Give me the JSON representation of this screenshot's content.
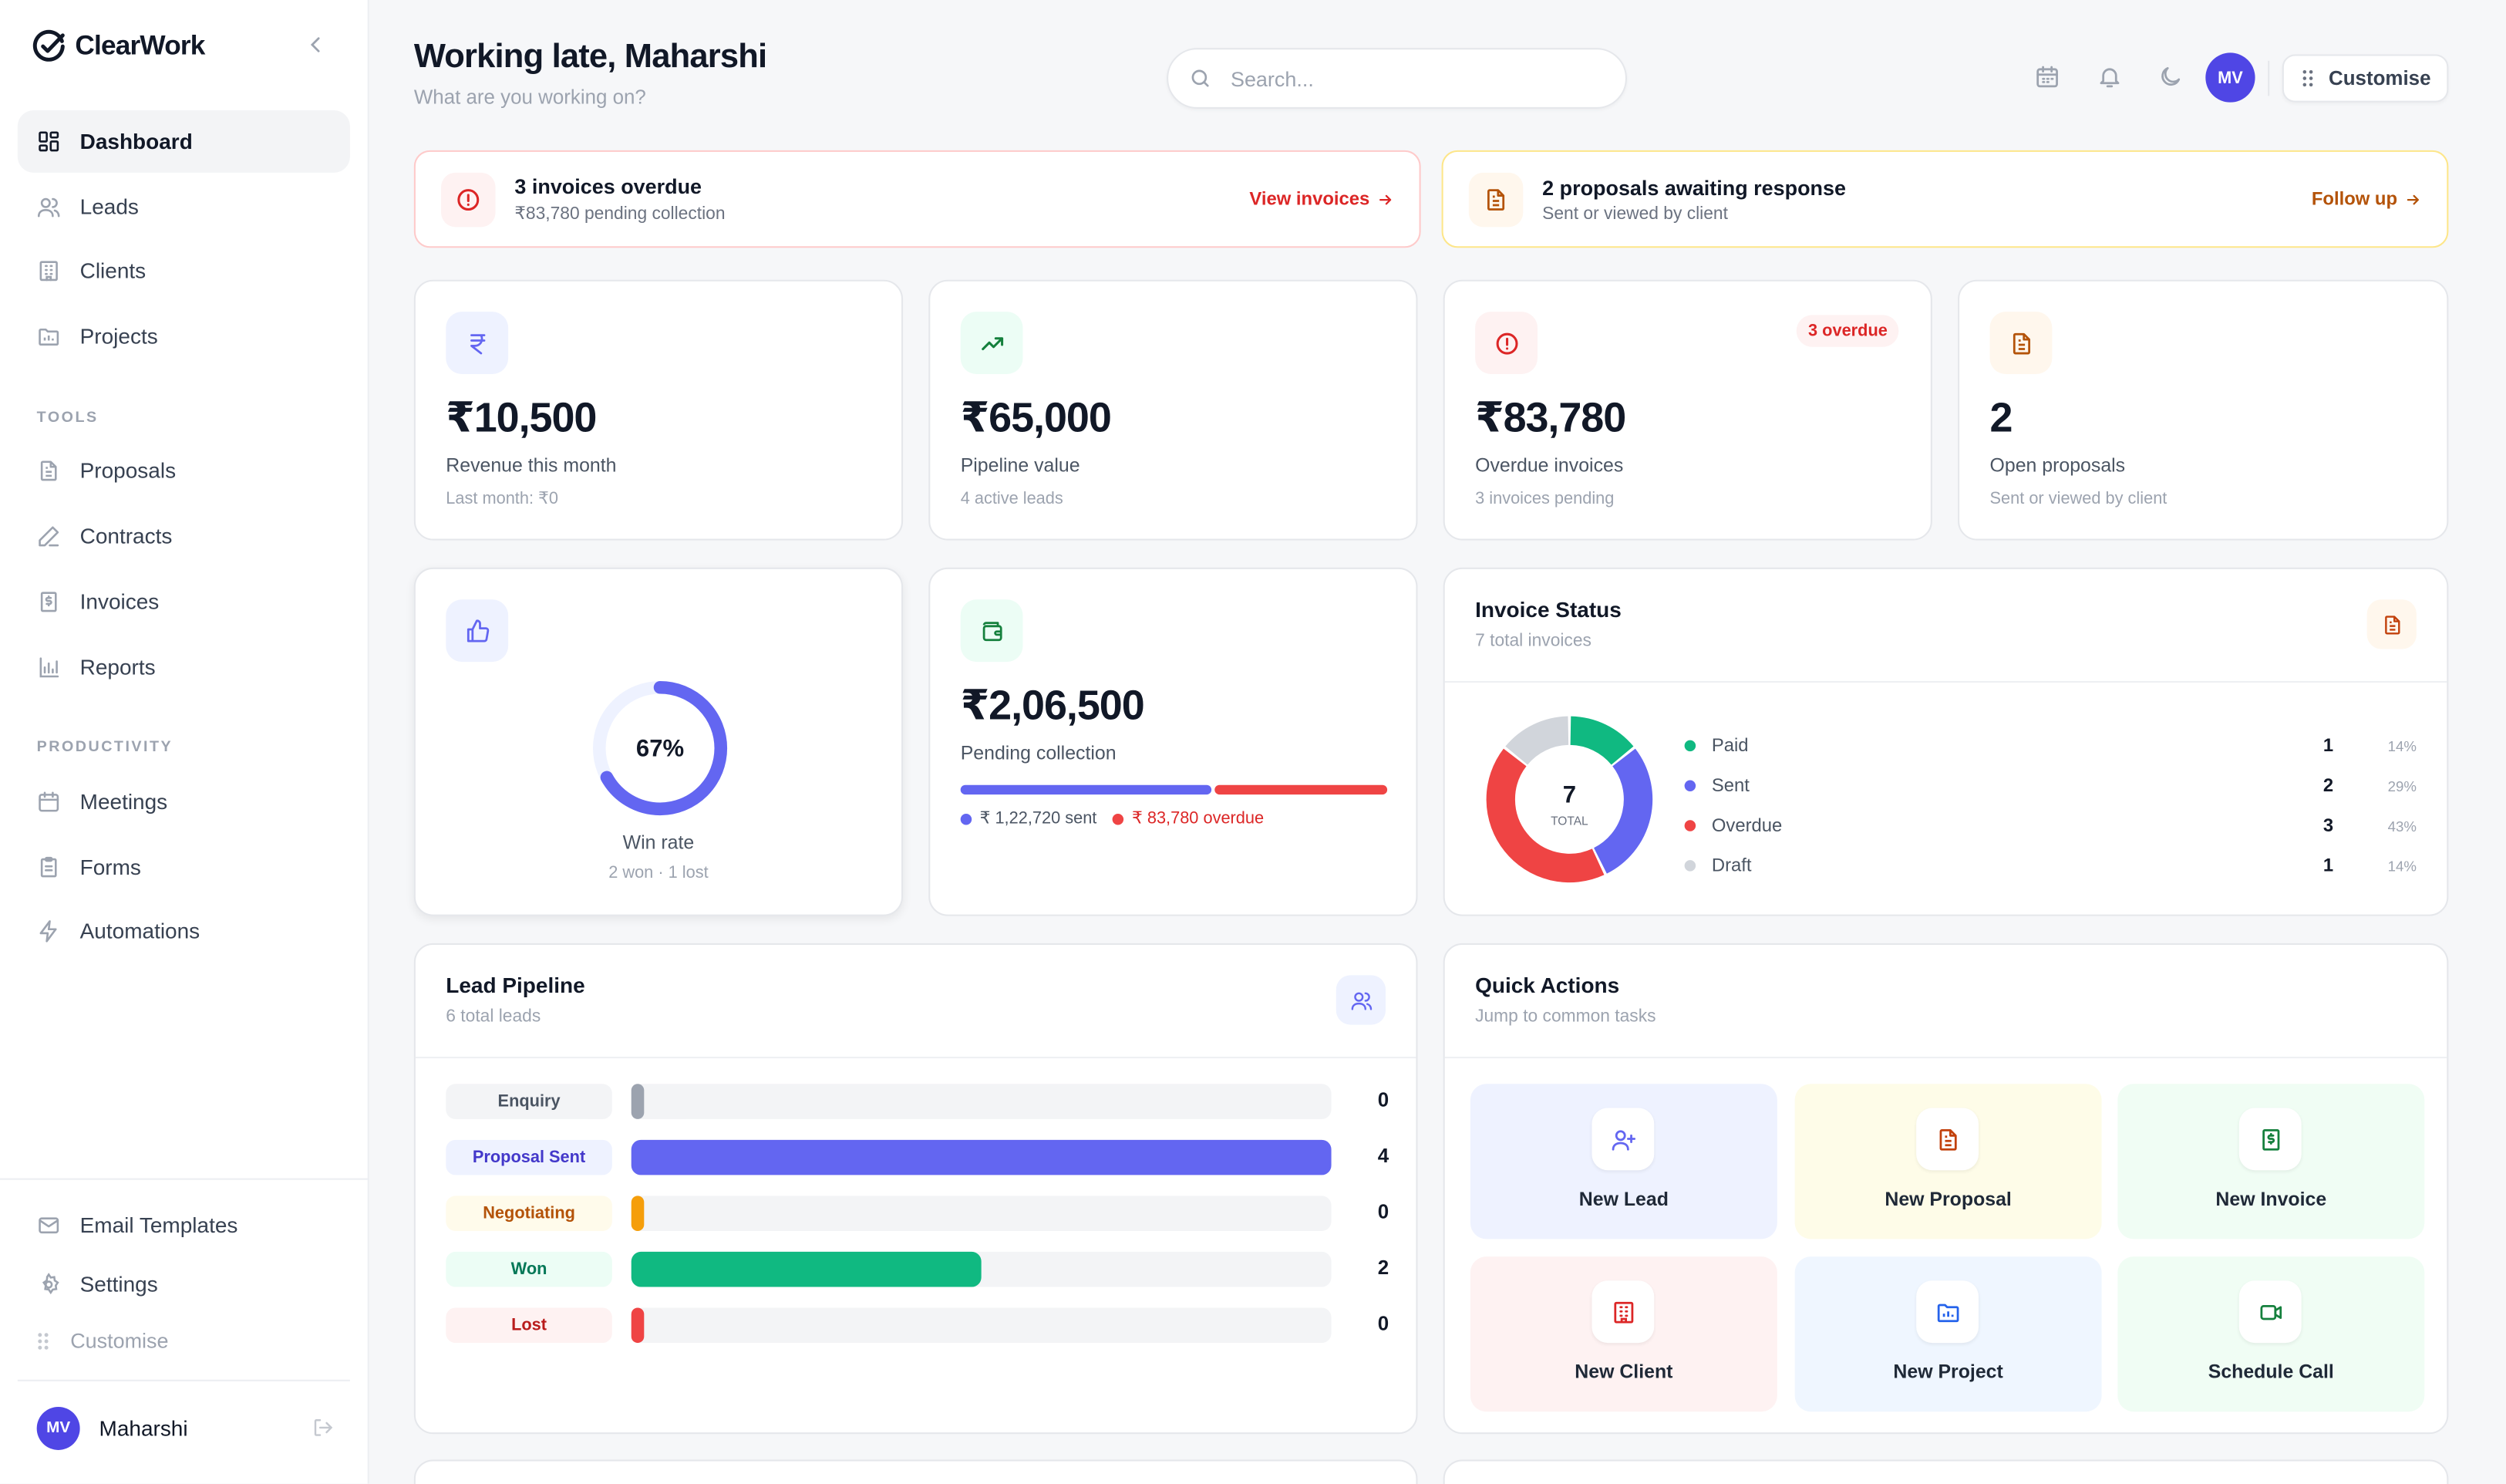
{
  "brand": {
    "name": "ClearWork"
  },
  "sidebar": {
    "main": [
      {
        "label": "Dashboard",
        "icon": "grid-icon"
      },
      {
        "label": "Leads",
        "icon": "users-icon"
      },
      {
        "label": "Clients",
        "icon": "building-icon"
      },
      {
        "label": "Projects",
        "icon": "folder-icon"
      }
    ],
    "tools_heading": "TOOLS",
    "tools": [
      {
        "label": "Proposals",
        "icon": "document-icon"
      },
      {
        "label": "Contracts",
        "icon": "pen-icon"
      },
      {
        "label": "Invoices",
        "icon": "invoice-icon"
      },
      {
        "label": "Reports",
        "icon": "bar-chart-icon"
      }
    ],
    "productivity_heading": "PRODUCTIVITY",
    "productivity": [
      {
        "label": "Meetings",
        "icon": "calendar-icon"
      },
      {
        "label": "Forms",
        "icon": "clipboard-icon"
      },
      {
        "label": "Automations",
        "icon": "bolt-icon"
      }
    ],
    "bottom": [
      {
        "label": "Email Templates",
        "icon": "mail-icon"
      },
      {
        "label": "Settings",
        "icon": "gear-icon"
      }
    ],
    "customise": "Customise",
    "user": {
      "initials": "MV",
      "name": "Maharshi"
    }
  },
  "header": {
    "greeting": "Working late, Maharshi",
    "subtitle": "What are you working on?",
    "search_placeholder": "Search...",
    "avatar_initials": "MV",
    "customise_label": "Customise"
  },
  "alerts": [
    {
      "title": "3 invoices overdue",
      "sub": "₹83,780 pending collection",
      "link": "View invoices"
    },
    {
      "title": "2 proposals awaiting response",
      "sub": "Sent or viewed by client",
      "link": "Follow up"
    }
  ],
  "stats": [
    {
      "value": "₹10,500",
      "label": "Revenue this month",
      "sub": "Last month: ₹0"
    },
    {
      "value": "₹65,000",
      "label": "Pipeline value",
      "sub": "4 active leads"
    },
    {
      "value": "₹83,780",
      "label": "Overdue invoices",
      "sub": "3 invoices pending",
      "badge": "3 overdue"
    },
    {
      "value": "2",
      "label": "Open proposals",
      "sub": "Sent or viewed by client"
    }
  ],
  "win_rate": {
    "percent_label": "67%",
    "percent": 67,
    "label": "Win rate",
    "sub": "2 won · 1 lost"
  },
  "pending": {
    "value": "₹2,06,500",
    "label": "Pending collection",
    "sent_label": "₹ 1,22,720 sent",
    "overdue_label": "₹ 83,780 overdue",
    "sent": 122720,
    "overdue": 83780
  },
  "invoice_status": {
    "title": "Invoice Status",
    "sub": "7 total invoices",
    "total": "7",
    "total_label": "TOTAL",
    "rows": [
      {
        "name": "Paid",
        "count": "1",
        "pct": "14%",
        "color": "#10b981",
        "value": 1
      },
      {
        "name": "Sent",
        "count": "2",
        "pct": "29%",
        "color": "#6366f1",
        "value": 2
      },
      {
        "name": "Overdue",
        "count": "3",
        "pct": "43%",
        "color": "#ef4444",
        "value": 3
      },
      {
        "name": "Draft",
        "count": "1",
        "pct": "14%",
        "color": "#d1d5db",
        "value": 1
      }
    ]
  },
  "pipeline": {
    "title": "Lead Pipeline",
    "sub": "6 total leads",
    "max": 4,
    "stages": [
      {
        "name": "Enquiry",
        "count": "0",
        "value": 0,
        "color": "#9ca3af",
        "tag_bg": "#f3f4f6",
        "tag_fg": "#4b5563"
      },
      {
        "name": "Proposal Sent",
        "count": "4",
        "value": 4,
        "color": "#6366f1",
        "tag_bg": "#eef2ff",
        "tag_fg": "#4338ca"
      },
      {
        "name": "Negotiating",
        "count": "0",
        "value": 0,
        "color": "#f59e0b",
        "tag_bg": "#fffbeb",
        "tag_fg": "#b45309"
      },
      {
        "name": "Won",
        "count": "2",
        "value": 2,
        "color": "#10b981",
        "tag_bg": "#ecfdf5",
        "tag_fg": "#047857"
      },
      {
        "name": "Lost",
        "count": "0",
        "value": 0,
        "color": "#ef4444",
        "tag_bg": "#fef2f2",
        "tag_fg": "#b91c1c"
      }
    ]
  },
  "quick_actions": {
    "title": "Quick Actions",
    "sub": "Jump to common tasks",
    "items": [
      {
        "label": "New Lead",
        "icon": "user-plus-icon",
        "bg": "#eef2ff",
        "fg": "#6366f1"
      },
      {
        "label": "New Proposal",
        "icon": "document-icon",
        "bg": "#fefce8",
        "fg": "#c2410c"
      },
      {
        "label": "New Invoice",
        "icon": "invoice-icon",
        "bg": "#f0fdf4",
        "fg": "#15803d"
      },
      {
        "label": "New Client",
        "icon": "building-icon",
        "bg": "#fef2f2",
        "fg": "#dc2626"
      },
      {
        "label": "New Project",
        "icon": "folder-icon",
        "bg": "#eff6ff",
        "fg": "#2563eb"
      },
      {
        "label": "Schedule Call",
        "icon": "video-icon",
        "bg": "#f0fdf4",
        "fg": "#15803d"
      }
    ]
  }
}
